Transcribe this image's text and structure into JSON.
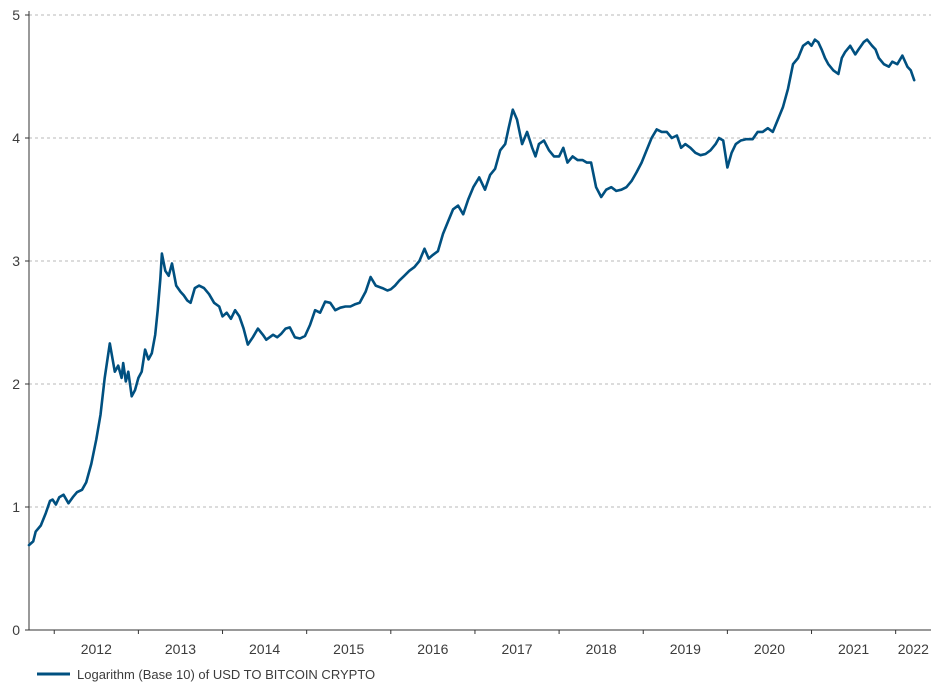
{
  "chart_data": {
    "type": "line",
    "title": "",
    "xlabel": "",
    "ylabel": "",
    "xlim": [
      2011.7,
      2022.42
    ],
    "ylim": [
      0,
      5
    ],
    "x_ticks": [
      2012,
      2013,
      2014,
      2015,
      2016,
      2017,
      2018,
      2019,
      2020,
      2021,
      2022
    ],
    "y_ticks": [
      0,
      1,
      2,
      3,
      4,
      5
    ],
    "grid": {
      "horizontal": true,
      "vertical": false,
      "style": "dashed"
    },
    "legend": {
      "position": "bottom-left"
    },
    "colors": {
      "series": "#005080",
      "grid": "#b8b8b8",
      "axis": "#333333"
    },
    "series": [
      {
        "name": "Logarithm (Base 10) of USD TO BITCOIN CRYPTO",
        "x": [
          2011.7,
          2011.75,
          2011.78,
          2011.84,
          2011.9,
          2011.95,
          2011.98,
          2012.02,
          2012.06,
          2012.11,
          2012.17,
          2012.22,
          2012.27,
          2012.33,
          2012.38,
          2012.44,
          2012.5,
          2012.55,
          2012.6,
          2012.66,
          2012.72,
          2012.76,
          2012.8,
          2012.82,
          2012.85,
          2012.88,
          2012.92,
          2012.96,
          2013.0,
          2013.04,
          2013.08,
          2013.12,
          2013.16,
          2013.2,
          2013.23,
          2013.26,
          2013.28,
          2013.32,
          2013.36,
          2013.4,
          2013.45,
          2013.5,
          2013.54,
          2013.58,
          2013.62,
          2013.67,
          2013.72,
          2013.78,
          2013.84,
          2013.9,
          2013.96,
          2014.0,
          2014.05,
          2014.1,
          2014.15,
          2014.2,
          2014.25,
          2014.3,
          2014.36,
          2014.42,
          2014.48,
          2014.52,
          2014.56,
          2014.6,
          2014.65,
          2014.7,
          2014.75,
          2014.8,
          2014.86,
          2014.92,
          2014.98,
          2015.04,
          2015.1,
          2015.16,
          2015.22,
          2015.28,
          2015.34,
          2015.4,
          2015.46,
          2015.52,
          2015.58,
          2015.63,
          2015.7,
          2015.76,
          2015.82,
          2015.9,
          2015.96,
          2016.0,
          2016.05,
          2016.1,
          2016.16,
          2016.22,
          2016.28,
          2016.34,
          2016.4,
          2016.45,
          2016.5,
          2016.56,
          2016.62,
          2016.68,
          2016.74,
          2016.8,
          2016.86,
          2016.92,
          2016.98,
          2017.05,
          2017.12,
          2017.18,
          2017.24,
          2017.3,
          2017.36,
          2017.4,
          2017.45,
          2017.5,
          2017.56,
          2017.62,
          2017.68,
          2017.72,
          2017.76,
          2017.82,
          2017.88,
          2017.94,
          2018.0,
          2018.05,
          2018.1,
          2018.16,
          2018.22,
          2018.28,
          2018.33,
          2018.38,
          2018.44,
          2018.5,
          2018.56,
          2018.62,
          2018.68,
          2018.74,
          2018.8,
          2018.86,
          2018.92,
          2018.98,
          2019.04,
          2019.1,
          2019.16,
          2019.22,
          2019.28,
          2019.34,
          2019.4,
          2019.45,
          2019.5,
          2019.56,
          2019.62,
          2019.68,
          2019.74,
          2019.8,
          2019.86,
          2019.9,
          2019.95,
          2020.0,
          2020.05,
          2020.1,
          2020.16,
          2020.22,
          2020.3,
          2020.36,
          2020.42,
          2020.48,
          2020.54,
          2020.6,
          2020.66,
          2020.72,
          2020.78,
          2020.84,
          2020.9,
          2020.96,
          2021.0,
          2021.04,
          2021.08,
          2021.12,
          2021.16,
          2021.2,
          2021.26,
          2021.32,
          2021.36,
          2021.4,
          2021.46,
          2021.52,
          2021.56,
          2021.62,
          2021.66,
          2021.72,
          2021.76,
          2021.8,
          2021.86,
          2021.92,
          2021.96,
          2022.02,
          2022.08,
          2022.14,
          2022.18,
          2022.22
        ],
        "values": [
          0.69,
          0.72,
          0.8,
          0.85,
          0.95,
          1.05,
          1.06,
          1.02,
          1.08,
          1.1,
          1.03,
          1.08,
          1.12,
          1.14,
          1.2,
          1.35,
          1.55,
          1.75,
          2.05,
          2.33,
          2.1,
          2.15,
          2.05,
          2.17,
          2.02,
          2.1,
          1.9,
          1.95,
          2.05,
          2.1,
          2.28,
          2.2,
          2.25,
          2.4,
          2.6,
          2.85,
          3.06,
          2.92,
          2.88,
          2.98,
          2.8,
          2.75,
          2.72,
          2.68,
          2.66,
          2.78,
          2.8,
          2.78,
          2.73,
          2.66,
          2.63,
          2.55,
          2.58,
          2.53,
          2.6,
          2.55,
          2.45,
          2.32,
          2.38,
          2.45,
          2.4,
          2.36,
          2.38,
          2.4,
          2.38,
          2.41,
          2.45,
          2.46,
          2.38,
          2.37,
          2.39,
          2.48,
          2.6,
          2.58,
          2.67,
          2.66,
          2.6,
          2.62,
          2.63,
          2.63,
          2.65,
          2.66,
          2.75,
          2.87,
          2.8,
          2.78,
          2.76,
          2.77,
          2.8,
          2.84,
          2.88,
          2.92,
          2.95,
          3.0,
          3.1,
          3.02,
          3.05,
          3.08,
          3.22,
          3.32,
          3.42,
          3.45,
          3.38,
          3.5,
          3.6,
          3.68,
          3.58,
          3.7,
          3.75,
          3.9,
          3.95,
          4.08,
          4.23,
          4.15,
          3.95,
          4.05,
          3.92,
          3.85,
          3.95,
          3.98,
          3.9,
          3.85,
          3.85,
          3.92,
          3.8,
          3.85,
          3.82,
          3.82,
          3.8,
          3.8,
          3.6,
          3.52,
          3.58,
          3.6,
          3.57,
          3.58,
          3.6,
          3.65,
          3.72,
          3.8,
          3.9,
          4.0,
          4.07,
          4.05,
          4.05,
          4.0,
          4.02,
          3.92,
          3.95,
          3.92,
          3.88,
          3.86,
          3.87,
          3.9,
          3.95,
          4.0,
          3.98,
          3.76,
          3.88,
          3.95,
          3.98,
          3.99,
          3.99,
          4.05,
          4.05,
          4.08,
          4.05,
          4.15,
          4.25,
          4.4,
          4.6,
          4.65,
          4.75,
          4.78,
          4.75,
          4.8,
          4.78,
          4.72,
          4.65,
          4.6,
          4.55,
          4.52,
          4.65,
          4.7,
          4.75,
          4.68,
          4.72,
          4.78,
          4.8,
          4.75,
          4.72,
          4.65,
          4.6,
          4.58,
          4.62,
          4.6,
          4.67,
          4.58,
          4.55,
          4.47
        ]
      }
    ]
  }
}
